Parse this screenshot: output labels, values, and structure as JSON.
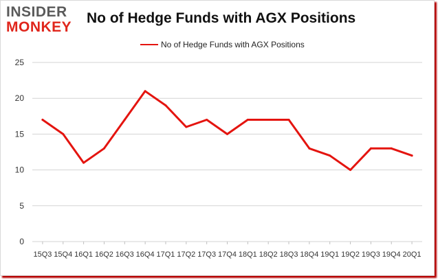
{
  "header": {
    "logo_top": "INSIDER",
    "logo_bottom": "MONKEY",
    "title": "No of Hedge Funds with AGX Positions"
  },
  "colors": {
    "series": "#e4140f",
    "grid": "#d3d3d3",
    "frame_shadow": "#b40000"
  },
  "chart_data": {
    "type": "line",
    "title": "No of Hedge Funds with AGX Positions",
    "xlabel": "",
    "ylabel": "",
    "ylim": [
      0,
      25
    ],
    "yticks": [
      0,
      5,
      10,
      15,
      20,
      25
    ],
    "grid": true,
    "legend": "top-center",
    "x": [
      "15Q3",
      "15Q4",
      "16Q1",
      "16Q2",
      "16Q3",
      "16Q4",
      "17Q1",
      "17Q2",
      "17Q3",
      "17Q4",
      "18Q1",
      "18Q2",
      "18Q3",
      "18Q4",
      "19Q1",
      "19Q2",
      "19Q3",
      "19Q4",
      "20Q1"
    ],
    "series": [
      {
        "name": "No of Hedge Funds with AGX Positions",
        "values": [
          17,
          15,
          11,
          13,
          17,
          21,
          19,
          16,
          17,
          15,
          17,
          17,
          17,
          13,
          12,
          10,
          13,
          13,
          12
        ]
      }
    ]
  }
}
